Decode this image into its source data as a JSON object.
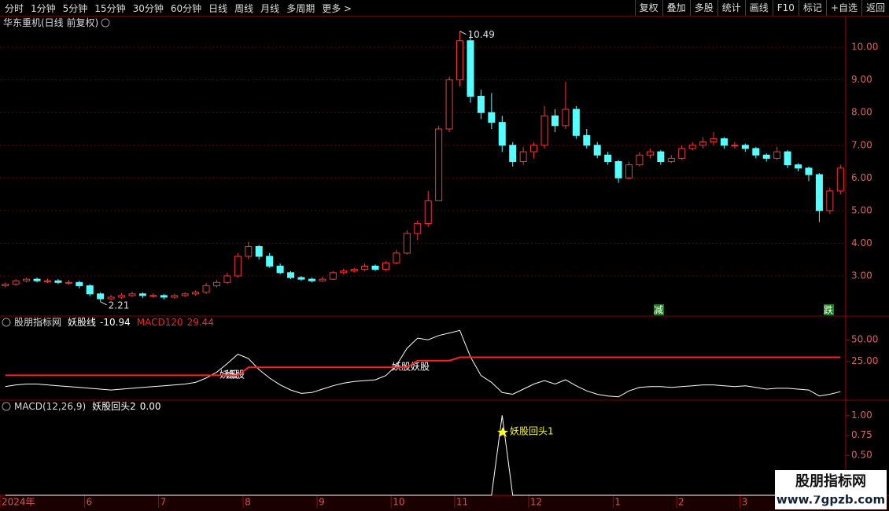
{
  "toolbar": {
    "left": [
      "分时",
      "1分钟",
      "5分钟",
      "15分钟",
      "30分钟",
      "60分钟",
      "日线",
      "周线",
      "月线",
      "多周期",
      "更多 >"
    ],
    "right": [
      "复权",
      "叠加",
      "多股",
      "统计",
      "画线",
      "F10",
      "标记",
      "+自选",
      "返回"
    ]
  },
  "watermark": {
    "title": "股朋指标网",
    "url": "www.7gpzb.com"
  },
  "chart_data": [
    {
      "type": "candlestick",
      "title": "华东重机(日线 前复权)",
      "up_color": "#ff3232",
      "down_color": "#54ffff",
      "grid": true,
      "categories": [
        "2024年",
        null,
        null,
        null,
        null,
        null,
        null,
        null,
        "6",
        null,
        null,
        null,
        null,
        null,
        null,
        "7",
        null,
        null,
        null,
        null,
        null,
        null,
        null,
        "8",
        null,
        null,
        null,
        null,
        null,
        null,
        "9",
        null,
        null,
        null,
        null,
        null,
        null,
        "10",
        null,
        null,
        null,
        null,
        null,
        "11",
        null,
        null,
        null,
        null,
        null,
        null,
        "12",
        null,
        null,
        null,
        null,
        null,
        null,
        null,
        "1",
        null,
        null,
        null,
        null,
        null,
        "2",
        null,
        null,
        null,
        null,
        null,
        "3",
        null,
        null,
        null,
        null,
        null,
        null,
        null,
        null,
        null
      ],
      "open": [
        2.7,
        2.75,
        2.85,
        2.9,
        2.85,
        2.85,
        2.8,
        2.8,
        2.7,
        2.45,
        2.3,
        2.35,
        2.4,
        2.45,
        2.4,
        2.4,
        2.35,
        2.4,
        2.45,
        2.5,
        2.7,
        2.8,
        3.0,
        3.6,
        3.9,
        3.6,
        3.3,
        3.1,
        2.95,
        2.9,
        2.85,
        2.9,
        3.1,
        3.15,
        3.2,
        3.3,
        3.2,
        3.4,
        3.7,
        4.3,
        4.6,
        5.3,
        7.5,
        9.0,
        10.2,
        8.5,
        8.0,
        7.7,
        7.0,
        6.5,
        6.8,
        7.0,
        7.9,
        7.6,
        8.1,
        7.3,
        7.0,
        6.7,
        6.5,
        6.0,
        6.4,
        6.7,
        6.8,
        6.5,
        6.6,
        6.9,
        7.0,
        7.1,
        7.2,
        7.0,
        7.0,
        6.9,
        6.7,
        6.6,
        6.8,
        6.4,
        6.3,
        6.1,
        5.0,
        5.6
      ],
      "high": [
        2.8,
        2.9,
        2.95,
        2.95,
        2.92,
        2.9,
        2.88,
        2.85,
        2.75,
        2.5,
        2.42,
        2.48,
        2.52,
        2.5,
        2.47,
        2.45,
        2.46,
        2.5,
        2.56,
        2.78,
        2.88,
        3.1,
        3.7,
        4.05,
        3.95,
        3.7,
        3.38,
        3.15,
        3.0,
        2.95,
        2.98,
        3.15,
        3.22,
        3.25,
        3.38,
        3.35,
        3.45,
        3.8,
        4.4,
        4.7,
        5.6,
        7.6,
        9.1,
        10.49,
        10.4,
        8.7,
        8.6,
        7.9,
        7.1,
        6.95,
        7.1,
        8.2,
        8.1,
        8.95,
        8.2,
        7.5,
        7.1,
        6.8,
        6.55,
        6.5,
        6.8,
        6.9,
        6.85,
        6.7,
        7.0,
        7.1,
        7.25,
        7.4,
        7.25,
        7.1,
        7.05,
        6.95,
        6.75,
        6.95,
        6.85,
        6.45,
        6.35,
        6.15,
        5.7,
        6.4
      ],
      "low": [
        2.65,
        2.7,
        2.8,
        2.8,
        2.78,
        2.75,
        2.72,
        2.62,
        2.38,
        2.21,
        2.25,
        2.3,
        2.35,
        2.32,
        2.33,
        2.28,
        2.3,
        2.35,
        2.4,
        2.45,
        2.65,
        2.75,
        2.95,
        3.5,
        3.5,
        3.25,
        3.05,
        2.9,
        2.85,
        2.8,
        2.82,
        2.88,
        3.05,
        3.1,
        3.15,
        3.15,
        3.15,
        3.35,
        3.65,
        4.1,
        4.5,
        5.3,
        7.4,
        8.8,
        8.3,
        7.8,
        7.5,
        6.8,
        6.35,
        6.4,
        6.6,
        6.9,
        7.4,
        7.5,
        7.2,
        6.9,
        6.6,
        6.4,
        5.85,
        5.95,
        6.35,
        6.6,
        6.4,
        6.45,
        6.55,
        6.85,
        6.9,
        7.0,
        6.9,
        6.9,
        6.8,
        6.6,
        6.5,
        6.55,
        6.3,
        6.2,
        5.9,
        4.65,
        4.9,
        5.5
      ],
      "close": [
        2.75,
        2.85,
        2.9,
        2.85,
        2.85,
        2.8,
        2.8,
        2.7,
        2.45,
        2.3,
        2.35,
        2.4,
        2.45,
        2.4,
        2.4,
        2.35,
        2.4,
        2.45,
        2.5,
        2.7,
        2.8,
        3.0,
        3.6,
        3.9,
        3.6,
        3.3,
        3.1,
        2.95,
        2.9,
        2.85,
        2.9,
        3.1,
        3.15,
        3.2,
        3.3,
        3.2,
        3.4,
        3.7,
        4.3,
        4.6,
        5.3,
        7.5,
        9.0,
        10.2,
        8.5,
        8.0,
        7.7,
        7.0,
        6.5,
        6.8,
        7.0,
        7.9,
        7.6,
        8.1,
        7.3,
        7.0,
        6.7,
        6.5,
        6.0,
        6.4,
        6.7,
        6.8,
        6.5,
        6.6,
        6.9,
        7.0,
        7.1,
        7.2,
        7.0,
        7.0,
        6.9,
        6.7,
        6.6,
        6.8,
        6.4,
        6.3,
        6.1,
        5.0,
        5.6,
        6.3
      ],
      "ylim": [
        1.82,
        10.58
      ],
      "yticks": [
        {
          "value": 3,
          "label": "3.00"
        },
        {
          "value": 4,
          "label": "4.00"
        },
        {
          "value": 5,
          "label": "5.00"
        },
        {
          "value": 6,
          "label": "6.00"
        },
        {
          "value": 7,
          "label": "7.00"
        },
        {
          "value": 8,
          "label": "8.00"
        },
        {
          "value": 9,
          "label": "9.00"
        },
        {
          "value": 10,
          "label": "10.00"
        }
      ],
      "signals": [
        "减",
        "跌"
      ]
    },
    {
      "type": "line",
      "title": "股朋指标网",
      "ylim": [
        -20,
        77
      ],
      "yticks": [
        {
          "value": 25,
          "label": "25.00"
        },
        {
          "value": 50,
          "label": "50.00"
        }
      ],
      "series": [
        {
          "name": "妖股线",
          "color": "#ffffff",
          "values": [
            -5,
            -3,
            -2,
            -2,
            -3,
            -4,
            -5,
            -6,
            -7,
            -8,
            -9,
            -8,
            -7,
            -6,
            -5,
            -4,
            -3,
            -2,
            0,
            5,
            12,
            22,
            33,
            28,
            15,
            5,
            -3,
            -9,
            -13,
            -12,
            -8,
            -4,
            -1,
            1,
            2,
            3,
            8,
            20,
            40,
            52,
            50,
            55,
            58,
            61,
            30,
            8,
            0,
            -12,
            -14,
            -8,
            -2,
            2,
            -2,
            3,
            -4,
            -10,
            -14,
            -16,
            -17,
            -10,
            -6,
            -5,
            -5,
            -6,
            -5,
            -4,
            -3,
            -3,
            -4,
            -5,
            -4,
            -6,
            -8,
            -7,
            -7,
            -8,
            -9,
            -16,
            -14,
            -10.94
          ]
        },
        {
          "name": "MACD120",
          "color": "#ff2020",
          "values": [
            8.3,
            8.3,
            8.3,
            8.3,
            8.3,
            8.3,
            8.3,
            8.3,
            8.3,
            8.3,
            8.3,
            8.3,
            8.3,
            8.3,
            8.3,
            8.3,
            8.3,
            8.3,
            8.3,
            8.3,
            8.3,
            8.3,
            8.3,
            17.6,
            17.6,
            17.6,
            17.6,
            17.6,
            17.6,
            17.6,
            17.6,
            17.6,
            17.6,
            17.6,
            17.6,
            17.6,
            17.6,
            17.6,
            17.6,
            25.5,
            25.5,
            25.5,
            25.5,
            29.44,
            29.44,
            29.44,
            29.44,
            29.44,
            29.44,
            29.44,
            29.44,
            29.44,
            29.44,
            29.44,
            29.44,
            29.44,
            29.44,
            29.44,
            29.44,
            29.44,
            29.44,
            29.44,
            29.44,
            29.44,
            29.44,
            29.44,
            29.44,
            29.44,
            29.44,
            29.44,
            29.44,
            29.44,
            29.44,
            29.44,
            29.44,
            29.44,
            29.44,
            29.44,
            29.44,
            29.44
          ]
        }
      ],
      "annotations": [
        "妖股",
        "妖股",
        "妖股",
        "妖股"
      ]
    },
    {
      "type": "line",
      "title": "MACD(12,26,9)",
      "ylim": [
        0,
        1.18
      ],
      "yticks": [
        {
          "value": 0.5,
          "label": "0.50"
        },
        {
          "value": 0.75,
          "label": "0.75"
        },
        {
          "value": 1,
          "label": "1.00"
        }
      ],
      "series": [
        {
          "name": "妖股回头2",
          "color": "#ffffff",
          "last_value_label": "0.00",
          "values": [
            0,
            0,
            0,
            0,
            0,
            0,
            0,
            0,
            0,
            0,
            0,
            0,
            0,
            0,
            0,
            0,
            0,
            0,
            0,
            0,
            0,
            0,
            0,
            0,
            0,
            0,
            0,
            0,
            0,
            0,
            0,
            0,
            0,
            0,
            0,
            0,
            0,
            0,
            0,
            0,
            0,
            0,
            0,
            0,
            0,
            0,
            0,
            1,
            0,
            0,
            0,
            0,
            0,
            0,
            0,
            0,
            0,
            0,
            0,
            0,
            0,
            0,
            0,
            0,
            0,
            0,
            0,
            0,
            0,
            0,
            0,
            0,
            0,
            0,
            0,
            0,
            0,
            0,
            0,
            0
          ]
        }
      ],
      "annotation": "妖股回头1"
    }
  ]
}
